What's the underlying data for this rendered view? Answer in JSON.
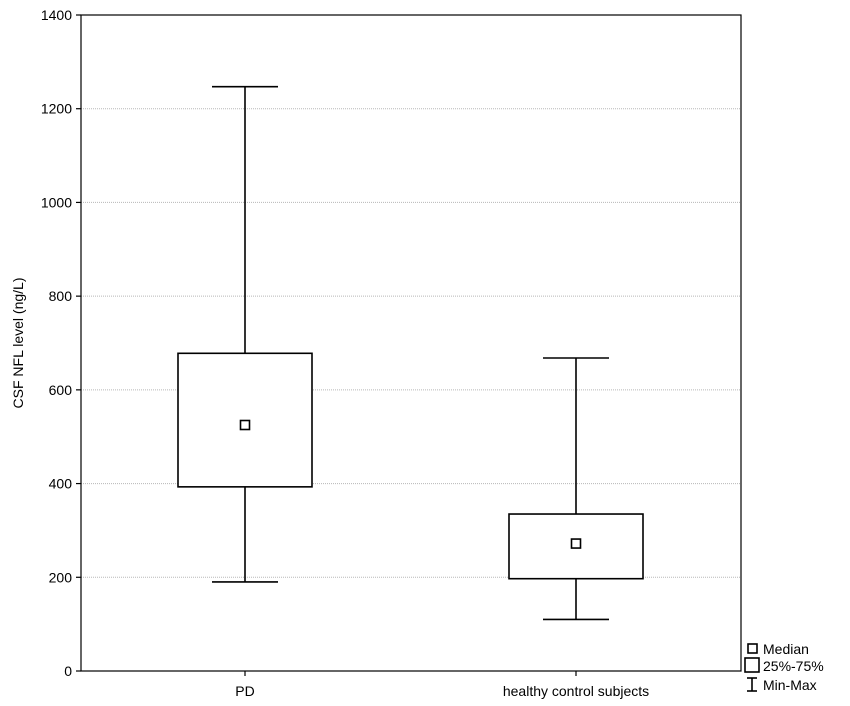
{
  "chart_data": {
    "type": "box",
    "ylabel": "CSF NFL level (ng/L)",
    "ylim": [
      0,
      1400
    ],
    "yticks": [
      0,
      200,
      400,
      600,
      800,
      1000,
      1200,
      1400
    ],
    "categories": [
      "PD",
      "healthy control subjects"
    ],
    "series": [
      {
        "category": "PD",
        "min": 190,
        "q1": 393,
        "median": 525,
        "q3": 678,
        "max": 1247
      },
      {
        "category": "healthy control subjects",
        "min": 110,
        "q1": 197,
        "median": 272,
        "q3": 335,
        "max": 668
      }
    ],
    "grid": "horizontal dotted",
    "legend": {
      "placement": "bottom-right",
      "entries": [
        "Median",
        "25%-75%",
        "Min-Max"
      ]
    }
  }
}
